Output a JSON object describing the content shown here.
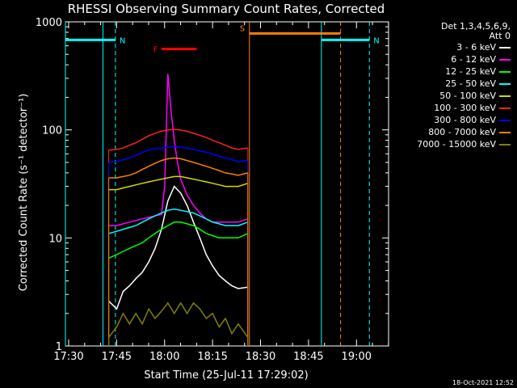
{
  "title": "RHESSI Observing Summary Count Rates, Corrected",
  "footer_date": "18-Oct-2021 12:52",
  "det_label": "Det 1,3,4,5,6,9,",
  "att_label": "Att 0",
  "chart_data": {
    "type": "line",
    "xlabel": "Start Time (25-Jul-11 17:29:02)",
    "ylabel": "Corrected Count Rate (s⁻¹ detector⁻¹)",
    "yscale": "log",
    "ylim": [
      1,
      1000
    ],
    "xlim_minutes": [
      -0.03,
      101
    ],
    "x_tick_labels": [
      "17:30",
      "17:45",
      "18:00",
      "18:15",
      "18:30",
      "18:45",
      "19:00"
    ],
    "x_tick_minutes": [
      0.97,
      15.97,
      30.97,
      45.97,
      60.97,
      75.97,
      90.97
    ],
    "y_tick_labels": [
      "1",
      "10",
      "100",
      "1000"
    ],
    "y_tick_values": [
      1,
      10,
      100,
      1000
    ],
    "series": [
      {
        "name": "3 - 6 keV",
        "color": "#ffffff",
        "x": [
          13.5,
          16,
          18,
          20,
          22,
          24,
          26,
          28,
          30,
          32,
          34,
          36,
          38,
          40,
          42,
          44,
          46,
          48,
          50,
          52,
          54,
          57
        ],
        "y": [
          2.6,
          2.2,
          3.2,
          3.6,
          4.2,
          4.8,
          6,
          8,
          12,
          22,
          30,
          26,
          20,
          14,
          10,
          7,
          5.5,
          4.5,
          4,
          3.6,
          3.4,
          3.5
        ]
      },
      {
        "name": "6 - 12 keV",
        "color": "#ff00ff",
        "x": [
          13.5,
          16,
          18,
          20,
          22,
          24,
          26,
          28,
          30,
          31,
          32,
          33,
          34,
          35,
          36,
          38,
          40,
          42,
          44,
          46,
          48,
          50,
          52,
          54,
          57
        ],
        "y": [
          13,
          13,
          13.5,
          14,
          14.5,
          15,
          15.5,
          16,
          16.5,
          30,
          330,
          150,
          80,
          50,
          35,
          25,
          20,
          17,
          15,
          14,
          14,
          14,
          14,
          14,
          15
        ]
      },
      {
        "name": "12 - 25 keV",
        "color": "#00ff00",
        "x": [
          13.5,
          16,
          18,
          20,
          22,
          24,
          26,
          28,
          30,
          32,
          34,
          36,
          38,
          40,
          42,
          44,
          46,
          48,
          50,
          52,
          54,
          57
        ],
        "y": [
          6.5,
          7,
          7.5,
          8,
          8.5,
          9,
          10,
          11,
          12,
          13,
          14,
          14,
          13.5,
          13,
          12,
          11,
          10.5,
          10,
          10,
          10,
          10,
          11
        ]
      },
      {
        "name": "25 - 50 keV",
        "color": "#00ffff",
        "x": [
          13.5,
          16,
          18,
          20,
          22,
          24,
          26,
          28,
          30,
          32,
          34,
          36,
          38,
          40,
          42,
          44,
          46,
          48,
          50,
          52,
          54,
          57
        ],
        "y": [
          11,
          11.5,
          12,
          12.5,
          13,
          14,
          15,
          16,
          17,
          18,
          18.5,
          18,
          17.5,
          17,
          16,
          15,
          14,
          13.5,
          13,
          13,
          13,
          14
        ]
      },
      {
        "name": "50 - 100 keV",
        "color": "#d8d800",
        "x": [
          13.5,
          16,
          18,
          20,
          22,
          24,
          26,
          28,
          30,
          32,
          34,
          36,
          38,
          40,
          42,
          44,
          46,
          48,
          50,
          52,
          54,
          57
        ],
        "y": [
          28,
          28,
          29,
          30,
          31,
          32,
          33,
          34,
          35,
          36,
          37,
          37,
          36,
          35,
          34,
          33,
          32,
          31,
          30,
          30,
          30,
          32
        ]
      },
      {
        "name": "100 - 300 keV",
        "color": "#ff2020",
        "x": [
          13.5,
          16,
          18,
          20,
          22,
          24,
          26,
          28,
          30,
          32,
          34,
          36,
          38,
          40,
          42,
          44,
          46,
          48,
          50,
          52,
          54,
          57
        ],
        "y": [
          65,
          66,
          68,
          72,
          76,
          82,
          88,
          93,
          97,
          100,
          101,
          100,
          97,
          93,
          89,
          85,
          80,
          76,
          72,
          68,
          66,
          68
        ]
      },
      {
        "name": "300 - 800 keV",
        "color": "#0000ff",
        "x": [
          13.5,
          16,
          18,
          20,
          22,
          24,
          26,
          28,
          30,
          32,
          34,
          36,
          38,
          40,
          42,
          44,
          46,
          48,
          50,
          52,
          54,
          57
        ],
        "y": [
          50,
          51,
          53,
          55,
          58,
          62,
          65,
          67,
          68,
          69,
          70,
          69,
          68,
          66,
          64,
          62,
          60,
          57,
          55,
          53,
          51,
          52
        ]
      },
      {
        "name": "800 - 7000 keV",
        "color": "#ff8000",
        "x": [
          13.5,
          16,
          18,
          20,
          22,
          24,
          26,
          28,
          30,
          32,
          34,
          36,
          38,
          40,
          42,
          44,
          46,
          48,
          50,
          52,
          54,
          57
        ],
        "y": [
          36,
          36,
          37,
          38,
          40,
          43,
          46,
          49,
          52,
          54,
          55,
          54,
          52,
          50,
          48,
          46,
          44,
          42,
          40,
          39,
          38,
          40
        ]
      },
      {
        "name": "7000 - 15000 keV",
        "color": "#808000",
        "x": [
          13.5,
          16,
          18,
          20,
          22,
          24,
          26,
          28,
          30,
          32,
          34,
          36,
          38,
          40,
          42,
          44,
          46,
          48,
          50,
          52,
          54,
          57
        ],
        "y": [
          1.2,
          1.5,
          2.0,
          1.6,
          2.0,
          1.6,
          2.2,
          1.8,
          2.1,
          2.5,
          2.0,
          2.5,
          2.0,
          2.5,
          2.2,
          1.8,
          2.0,
          1.5,
          1.8,
          1.3,
          1.6,
          1.2
        ]
      }
    ],
    "annotations": [
      {
        "label": "N",
        "color": "#00ffff",
        "x_start": -0.03,
        "x_end": 15.6,
        "y": 680
      },
      {
        "label": "N",
        "color": "#00ffff",
        "x_start": 80,
        "x_end": 95,
        "y": 680
      },
      {
        "label": "S",
        "color": "#ff8000",
        "x_start": 57.5,
        "x_end": 86,
        "y": 780
      },
      {
        "label": "F",
        "color": "#ff0000",
        "x_start": 30,
        "x_end": 41,
        "y": 560
      }
    ],
    "attenuator_lines": [
      {
        "color": "#00ffff",
        "x": -0.03,
        "style": "solid"
      },
      {
        "color": "#00ffff",
        "x": 11.7,
        "style": "solid"
      },
      {
        "color": "#00ffff",
        "x": 15.6,
        "style": "dashed"
      },
      {
        "color": "#ff8000",
        "x": 57.5,
        "style": "solid"
      },
      {
        "color": "#00ffff",
        "x": 80,
        "style": "solid"
      },
      {
        "color": "#ff8000",
        "x": 86,
        "style": "dashed"
      },
      {
        "color": "#00ffff",
        "x": 95,
        "style": "dashed"
      }
    ]
  }
}
